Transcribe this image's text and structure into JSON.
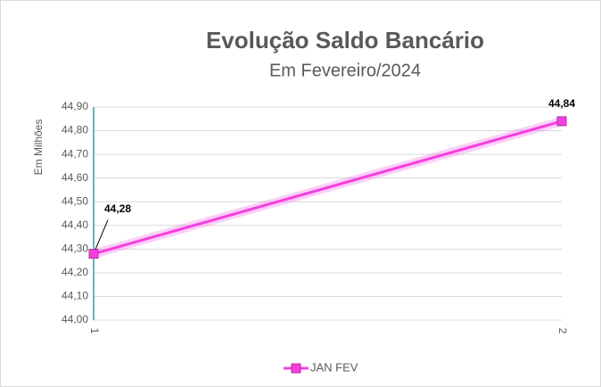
{
  "chart_data": {
    "type": "line",
    "title": "Evolução Saldo Bancário",
    "subtitle": "Em Fevereiro/2024",
    "y_label": "Em Milhões",
    "categories": [
      "1",
      "2"
    ],
    "series": [
      {
        "name": "JAN FEV",
        "color": "#f43fe0",
        "values": [
          44.28,
          44.84
        ],
        "value_labels": [
          "44,28",
          "44,84"
        ]
      }
    ],
    "ylim": [
      44.0,
      44.9
    ],
    "yticks": [
      {
        "value": 44.0,
        "label": "44,00"
      },
      {
        "value": 44.1,
        "label": "44,10"
      },
      {
        "value": 44.2,
        "label": "44,20"
      },
      {
        "value": 44.3,
        "label": "44,30"
      },
      {
        "value": 44.4,
        "label": "44,40"
      },
      {
        "value": 44.5,
        "label": "44,50"
      },
      {
        "value": 44.6,
        "label": "44,60"
      },
      {
        "value": 44.7,
        "label": "44,70"
      },
      {
        "value": 44.8,
        "label": "44,80"
      },
      {
        "value": 44.9,
        "label": "44,90"
      }
    ],
    "grid": true,
    "legend": "bottom"
  }
}
